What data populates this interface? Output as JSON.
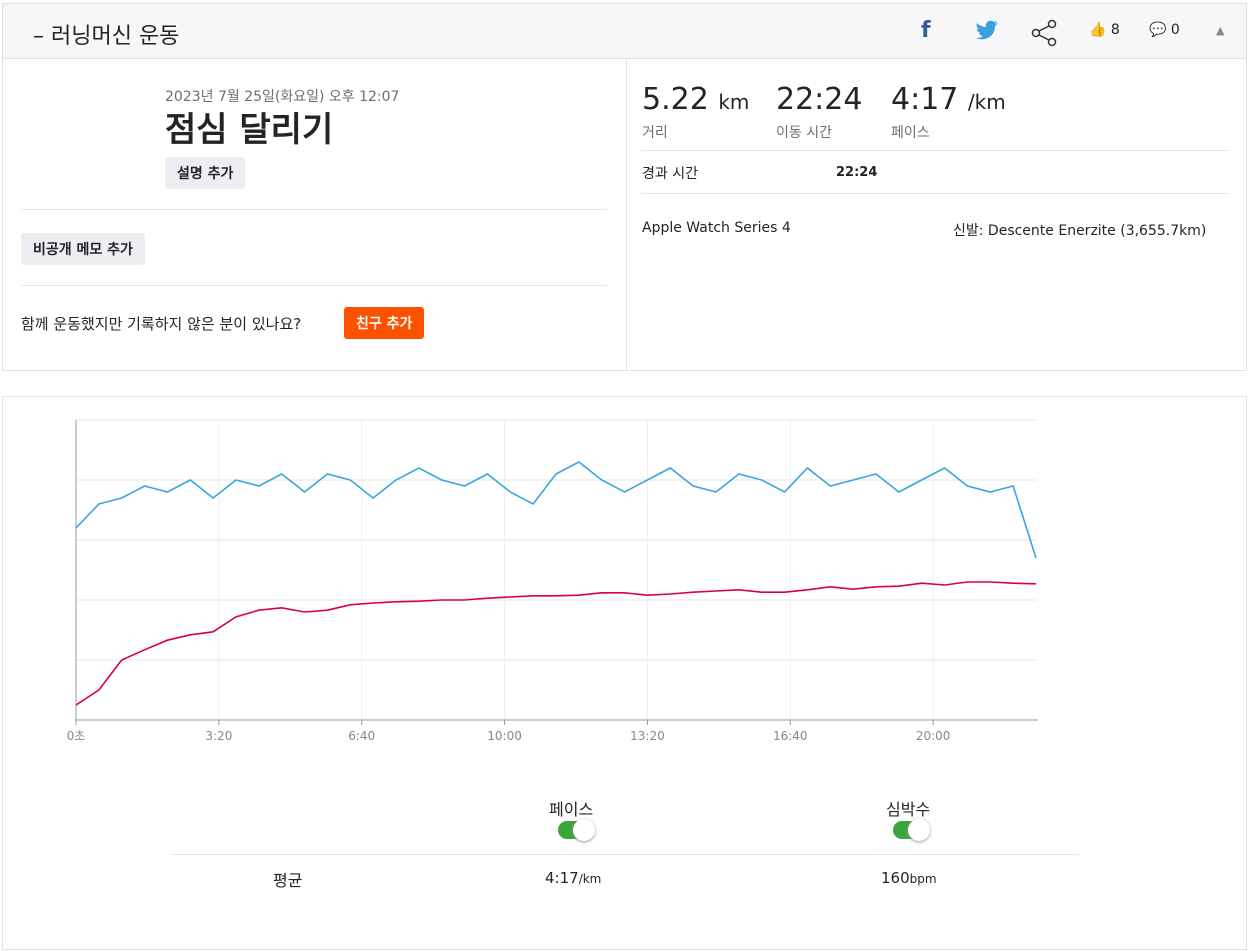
{
  "header": {
    "title": "– 러닝머신 운동",
    "likes": 8,
    "comments": 0
  },
  "activity": {
    "date": "2023년 7월 25일(화요일) 오후 12:07",
    "title": "점심 달리기",
    "add_description": "설명 추가",
    "add_private_note": "비공개 메모 추가",
    "friends_prompt": "함께 운동했지만 기록하지 않은 분이 있나요?",
    "add_friend": "친구 추가"
  },
  "stats": {
    "distance": {
      "value": "5.22",
      "unit": "km",
      "label": "거리"
    },
    "moving_time": {
      "value": "22:24",
      "label": "이동 시간"
    },
    "pace": {
      "value": "4:17",
      "unit": "/km",
      "label": "페이스"
    },
    "elapsed_label": "경과 시간",
    "elapsed_value": "22:24",
    "device": "Apple Watch Series 4",
    "shoes": "신발: Descente Enerzite (3,655.7km)"
  },
  "chart_data": {
    "type": "line",
    "x": [
      0,
      32,
      64,
      96,
      128,
      160,
      192,
      224,
      256,
      288,
      320,
      352,
      384,
      416,
      448,
      480,
      512,
      544,
      576,
      608,
      640,
      672,
      704,
      736,
      768,
      800,
      832,
      864,
      896,
      928,
      960,
      992,
      1024,
      1056,
      1088,
      1120,
      1152,
      1184,
      1216,
      1248,
      1280,
      1312,
      1344
    ],
    "xlim": [
      0,
      1344
    ],
    "xticks": [
      {
        "value": 0,
        "label": "0초"
      },
      {
        "value": 200,
        "label": "3:20"
      },
      {
        "value": 400,
        "label": "6:40"
      },
      {
        "value": 600,
        "label": "10:00"
      },
      {
        "value": 800,
        "label": "13:20"
      },
      {
        "value": 1000,
        "label": "16:40"
      },
      {
        "value": 1200,
        "label": "20:00"
      }
    ],
    "ylim": [
      0,
      5
    ],
    "grid": true,
    "series": [
      {
        "name": "페이스",
        "color": "#3aa7dc",
        "values": [
          3.2,
          3.6,
          3.7,
          3.9,
          3.8,
          4.0,
          3.7,
          4.0,
          3.9,
          4.1,
          3.8,
          4.1,
          4.0,
          3.7,
          4.0,
          4.2,
          4.0,
          3.9,
          4.1,
          3.8,
          3.6,
          4.1,
          4.3,
          4.0,
          3.8,
          4.0,
          4.2,
          3.9,
          3.8,
          4.1,
          4.0,
          3.8,
          4.2,
          3.9,
          4.0,
          4.1,
          3.8,
          4.0,
          4.2,
          3.9,
          3.8,
          3.9,
          2.7
        ]
      },
      {
        "name": "심박수",
        "color": "#d6004f",
        "values": [
          0.25,
          0.5,
          1.0,
          1.17,
          1.33,
          1.42,
          1.47,
          1.72,
          1.83,
          1.87,
          1.8,
          1.83,
          1.92,
          1.95,
          1.97,
          1.98,
          2.0,
          2.0,
          2.03,
          2.05,
          2.07,
          2.07,
          2.08,
          2.12,
          2.12,
          2.08,
          2.1,
          2.13,
          2.15,
          2.17,
          2.13,
          2.13,
          2.17,
          2.22,
          2.18,
          2.22,
          2.23,
          2.28,
          2.25,
          2.3,
          2.3,
          2.28,
          2.27
        ]
      }
    ]
  },
  "summary": {
    "average_label": "평균",
    "pace_value": "4:17",
    "pace_unit": "/km",
    "hr_value": "160",
    "hr_unit": "bpm"
  }
}
